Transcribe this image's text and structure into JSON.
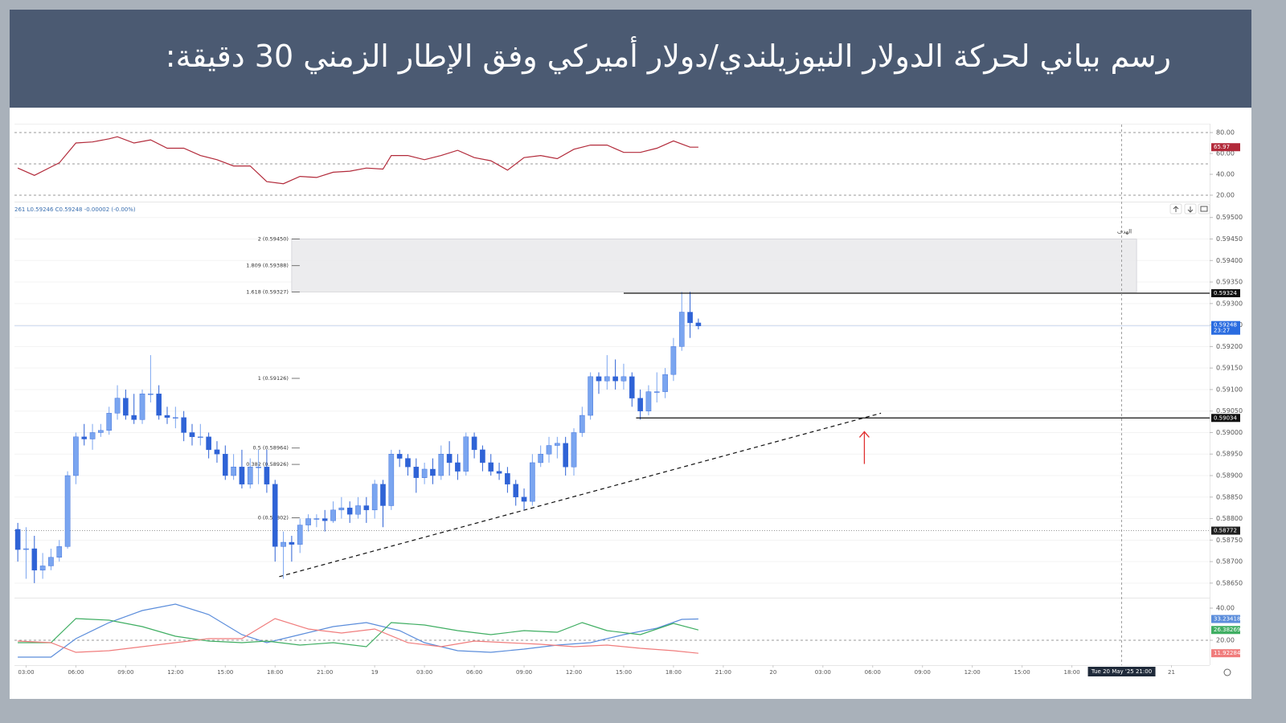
{
  "header": {
    "title": "رسم بياني لحركة الدولار النيوزيلندي/دولار أميركي وفق الإطار الزمني 30 دقيقة:"
  },
  "chart_data": [
    {
      "type": "line",
      "ylim": [
        14.6,
        87.7
      ],
      "yticks": [
        {
          "value": 20,
          "label": "20.00"
        },
        {
          "value": 40,
          "label": "40.00"
        },
        {
          "value": 60,
          "label": "60.00"
        },
        {
          "value": 80,
          "label": "80.00"
        }
      ],
      "levels": [
        80,
        50,
        20
      ],
      "series": [
        {
          "color": "#b22a3a",
          "x": [
            0,
            2,
            4,
            5,
            7,
            9,
            11,
            12,
            14,
            16,
            18,
            20,
            22,
            24,
            26,
            28,
            30,
            32,
            34,
            36,
            38,
            40,
            42,
            44,
            45,
            47,
            49,
            51,
            53,
            55,
            57,
            59,
            61,
            63,
            65,
            67,
            69,
            71,
            73,
            75,
            77,
            79,
            81,
            82
          ],
          "values": [
            46,
            39,
            47,
            51,
            70,
            71,
            74,
            76,
            70,
            73,
            65,
            65,
            58,
            54,
            48,
            48,
            33,
            31,
            38,
            37,
            42,
            43,
            46,
            45,
            58,
            58,
            54,
            58,
            63,
            56,
            53,
            44,
            56,
            58,
            55,
            64,
            68,
            68,
            61,
            61,
            65,
            72,
            66,
            65.97
          ]
        }
      ]
    },
    {
      "type": "candlestick",
      "legend_text": "261 L0.59246 C0.59248 -0.00002 (-0.00%)",
      "color_up": "#7aa5f0",
      "color_down": "#2f63d6",
      "xlim": [
        -0.4,
        143.6
      ],
      "xticks": [
        {
          "value": 1,
          "label": "03:00"
        },
        {
          "value": 7,
          "label": "06:00"
        },
        {
          "value": 13,
          "label": "09:00"
        },
        {
          "value": 19,
          "label": "12:00"
        },
        {
          "value": 25,
          "label": "15:00"
        },
        {
          "value": 31,
          "label": "18:00"
        },
        {
          "value": 37,
          "label": "21:00"
        },
        {
          "value": 43,
          "label": "19"
        },
        {
          "value": 49,
          "label": "03:00"
        },
        {
          "value": 55,
          "label": "06:00"
        },
        {
          "value": 61,
          "label": "09:00"
        },
        {
          "value": 67,
          "label": "12:00"
        },
        {
          "value": 73,
          "label": "15:00"
        },
        {
          "value": 79,
          "label": "18:00"
        },
        {
          "value": 85,
          "label": "21:00"
        },
        {
          "value": 91,
          "label": "20"
        },
        {
          "value": 97,
          "label": "03:00"
        },
        {
          "value": 103,
          "label": "06:00"
        },
        {
          "value": 109,
          "label": "09:00"
        },
        {
          "value": 115,
          "label": "12:00"
        },
        {
          "value": 121,
          "label": "15:00"
        },
        {
          "value": 127,
          "label": "18:00"
        },
        {
          "value": 139,
          "label": "21"
        }
      ],
      "ylim": [
        0.58618,
        0.59535
      ],
      "yticks": [
        {
          "value": 0.5865,
          "label": "0.58650"
        },
        {
          "value": 0.587,
          "label": "0.58700"
        },
        {
          "value": 0.5875,
          "label": "0.58750"
        },
        {
          "value": 0.588,
          "label": "0.58800"
        },
        {
          "value": 0.5885,
          "label": "0.58850"
        },
        {
          "value": 0.589,
          "label": "0.58900"
        },
        {
          "value": 0.5895,
          "label": "0.58950"
        },
        {
          "value": 0.59,
          "label": "0.59000"
        },
        {
          "value": 0.5905,
          "label": "0.59050"
        },
        {
          "value": 0.591,
          "label": "0.59100"
        },
        {
          "value": 0.5915,
          "label": "0.59150"
        },
        {
          "value": 0.592,
          "label": "0.59200"
        },
        {
          "value": 0.5925,
          "label": "0.59250"
        },
        {
          "value": 0.593,
          "label": "0.59300"
        },
        {
          "value": 0.5935,
          "label": "0.59350"
        },
        {
          "value": 0.594,
          "label": "0.59400"
        },
        {
          "value": 0.5945,
          "label": "0.59450"
        },
        {
          "value": 0.595,
          "label": "0.59500"
        }
      ],
      "candles": [
        [
          0.58775,
          0.5879,
          0.587,
          0.58728
        ],
        [
          0.58728,
          0.5878,
          0.5866,
          0.5873
        ],
        [
          0.5873,
          0.5876,
          0.5865,
          0.5868
        ],
        [
          0.5868,
          0.5872,
          0.5866,
          0.5869
        ],
        [
          0.5869,
          0.5873,
          0.5868,
          0.5871
        ],
        [
          0.5871,
          0.5875,
          0.587,
          0.58735
        ],
        [
          0.58735,
          0.5891,
          0.5873,
          0.589
        ],
        [
          0.589,
          0.59,
          0.5888,
          0.5899
        ],
        [
          0.5899,
          0.5902,
          0.5897,
          0.58985
        ],
        [
          0.58985,
          0.5902,
          0.5896,
          0.59
        ],
        [
          0.59,
          0.5902,
          0.5899,
          0.59005
        ],
        [
          0.59005,
          0.5906,
          0.58995,
          0.59045
        ],
        [
          0.59045,
          0.5911,
          0.5903,
          0.5908
        ],
        [
          0.5908,
          0.591,
          0.5903,
          0.5904
        ],
        [
          0.5904,
          0.5909,
          0.5902,
          0.5903
        ],
        [
          0.5903,
          0.591,
          0.5902,
          0.5909
        ],
        [
          0.5909,
          0.5918,
          0.5907,
          0.5909
        ],
        [
          0.5909,
          0.5911,
          0.5903,
          0.5904
        ],
        [
          0.5904,
          0.5906,
          0.5902,
          0.59035
        ],
        [
          0.59035,
          0.5906,
          0.5901,
          0.59035
        ],
        [
          0.59035,
          0.5905,
          0.5898,
          0.59
        ],
        [
          0.59,
          0.5902,
          0.5897,
          0.5899
        ],
        [
          0.5899,
          0.5902,
          0.5897,
          0.5899
        ],
        [
          0.5899,
          0.59,
          0.5894,
          0.5896
        ],
        [
          0.5896,
          0.5898,
          0.5893,
          0.5895
        ],
        [
          0.5895,
          0.5897,
          0.5889,
          0.589
        ],
        [
          0.589,
          0.5895,
          0.5889,
          0.5892
        ],
        [
          0.5892,
          0.5896,
          0.5887,
          0.5888
        ],
        [
          0.5888,
          0.5894,
          0.5887,
          0.5892
        ],
        [
          0.5892,
          0.5896,
          0.5888,
          0.5892
        ],
        [
          0.5892,
          0.5896,
          0.5886,
          0.5888
        ],
        [
          0.5888,
          0.5889,
          0.587,
          0.58735
        ],
        [
          0.58735,
          0.5877,
          0.5866,
          0.58745
        ],
        [
          0.58745,
          0.5876,
          0.587,
          0.5874
        ],
        [
          0.5874,
          0.588,
          0.5872,
          0.58785
        ],
        [
          0.58785,
          0.5881,
          0.5877,
          0.588
        ],
        [
          0.588,
          0.5881,
          0.5878,
          0.588
        ],
        [
          0.588,
          0.5882,
          0.5877,
          0.58795
        ],
        [
          0.58795,
          0.5884,
          0.5879,
          0.5882
        ],
        [
          0.5882,
          0.5885,
          0.588,
          0.58825
        ],
        [
          0.58825,
          0.5884,
          0.5879,
          0.5881
        ],
        [
          0.5881,
          0.5885,
          0.588,
          0.5883
        ],
        [
          0.5883,
          0.5885,
          0.5879,
          0.5882
        ],
        [
          0.5882,
          0.5889,
          0.588,
          0.5888
        ],
        [
          0.5888,
          0.5889,
          0.5878,
          0.5883
        ],
        [
          0.5883,
          0.5896,
          0.5882,
          0.5895
        ],
        [
          0.5895,
          0.5896,
          0.5892,
          0.5894
        ],
        [
          0.5894,
          0.5895,
          0.589,
          0.5892
        ],
        [
          0.5892,
          0.5894,
          0.5886,
          0.58895
        ],
        [
          0.58895,
          0.5893,
          0.5888,
          0.58915
        ],
        [
          0.58915,
          0.5894,
          0.5888,
          0.589
        ],
        [
          0.589,
          0.5897,
          0.5889,
          0.5895
        ],
        [
          0.5895,
          0.5898,
          0.589,
          0.5893
        ],
        [
          0.5893,
          0.5895,
          0.5889,
          0.5891
        ],
        [
          0.5891,
          0.59,
          0.589,
          0.5899
        ],
        [
          0.5899,
          0.59,
          0.5894,
          0.5896
        ],
        [
          0.5896,
          0.5897,
          0.5891,
          0.5893
        ],
        [
          0.5893,
          0.5895,
          0.589,
          0.5891
        ],
        [
          0.5891,
          0.5893,
          0.5889,
          0.58905
        ],
        [
          0.58905,
          0.5892,
          0.5886,
          0.5888
        ],
        [
          0.5888,
          0.5889,
          0.5883,
          0.5885
        ],
        [
          0.5885,
          0.5887,
          0.5882,
          0.5884
        ],
        [
          0.5884,
          0.5895,
          0.5883,
          0.5893
        ],
        [
          0.5893,
          0.5897,
          0.5892,
          0.5895
        ],
        [
          0.5895,
          0.5899,
          0.5893,
          0.5897
        ],
        [
          0.5897,
          0.5899,
          0.5894,
          0.58975
        ],
        [
          0.58975,
          0.5899,
          0.589,
          0.5892
        ],
        [
          0.5892,
          0.5901,
          0.589,
          0.59
        ],
        [
          0.59,
          0.5906,
          0.5899,
          0.5904
        ],
        [
          0.5904,
          0.5914,
          0.5903,
          0.5913
        ],
        [
          0.5913,
          0.5914,
          0.5909,
          0.5912
        ],
        [
          0.5912,
          0.5918,
          0.591,
          0.5913
        ],
        [
          0.5913,
          0.5917,
          0.591,
          0.5912
        ],
        [
          0.5912,
          0.5916,
          0.591,
          0.5913
        ],
        [
          0.5913,
          0.5914,
          0.5906,
          0.5908
        ],
        [
          0.5908,
          0.591,
          0.5903,
          0.5905
        ],
        [
          0.5905,
          0.5911,
          0.5904,
          0.59095
        ],
        [
          0.59095,
          0.5914,
          0.5907,
          0.59095
        ],
        [
          0.59095,
          0.5915,
          0.5908,
          0.59135
        ],
        [
          0.59135,
          0.5922,
          0.5912,
          0.592
        ],
        [
          0.592,
          0.59327,
          0.5919,
          0.5928
        ],
        [
          0.5928,
          0.59327,
          0.5922,
          0.59255
        ],
        [
          0.59255,
          0.59265,
          0.5924,
          0.59248
        ]
      ],
      "countdown": "23:27",
      "marker_price": 0.58772,
      "hlines": [
        {
          "value": 0.59324,
          "start": 73
        },
        {
          "value": 0.59034,
          "start": 74.5
        }
      ],
      "fib_start": 33,
      "fib_levels": [
        {
          "value": 0.5945,
          "label": "2 (0.59450)"
        },
        {
          "value": 0.59388,
          "label": "1.809 (0.59388)"
        },
        {
          "value": 0.59327,
          "label": "1.618 (0.59327)"
        },
        {
          "value": 0.59126,
          "label": "1 (0.59126)"
        },
        {
          "value": 0.58964,
          "label": "0.5 (0.58964)"
        },
        {
          "value": 0.58926,
          "label": "0.382 (0.58926)"
        },
        {
          "value": 0.58802,
          "label": "0 (0.58802)"
        }
      ],
      "zone": {
        "from": 33,
        "to": 134.8,
        "low": 0.59327,
        "high": 0.5945,
        "label": "الهدف"
      },
      "trendline": {
        "x": [
          31.5,
          104
        ],
        "values": [
          0.58665,
          0.59045
        ]
      },
      "arrow": {
        "x": 102,
        "from": 0.58927,
        "to": 0.59002,
        "color": "#e03030"
      },
      "crosshair": {
        "x": 133,
        "label": "Tue 20 May '25  21:00"
      }
    },
    {
      "type": "line",
      "ylim": [
        4.5,
        46
      ],
      "yticks": [
        {
          "value": 20,
          "label": "20.00"
        },
        {
          "value": 40,
          "label": "40.00"
        }
      ],
      "levels": [
        20
      ],
      "series": [
        {
          "color": "#5b8ddb",
          "x": [
            0,
            4,
            7,
            11,
            15,
            19,
            23,
            27,
            30,
            34,
            38,
            42,
            46,
            49,
            53,
            57,
            61,
            65,
            69,
            73,
            77,
            80,
            82
          ],
          "values": [
            9.5,
            9.5,
            21,
            31,
            38.5,
            42.5,
            36,
            23.5,
            18.5,
            23.5,
            28.5,
            31,
            26,
            18.5,
            13.5,
            12.5,
            14.5,
            17,
            18.5,
            23.5,
            27.5,
            33,
            33.23418
          ]
        },
        {
          "color": "#3fae62",
          "x": [
            0,
            4,
            7,
            11,
            15,
            19,
            23,
            27,
            30,
            34,
            38,
            42,
            45,
            49,
            53,
            57,
            61,
            65,
            68,
            71,
            75,
            79,
            82
          ],
          "values": [
            18.5,
            18.5,
            33.5,
            32.5,
            28.5,
            22.5,
            19.5,
            18.5,
            19.5,
            17,
            18.5,
            16,
            31,
            29.5,
            26,
            23.5,
            26,
            25,
            31,
            26,
            23.5,
            30.5,
            26.38269
          ]
        },
        {
          "color": "#f07c7c",
          "x": [
            0,
            4,
            7,
            11,
            15,
            19,
            23,
            27,
            31,
            35,
            39,
            43,
            47,
            51,
            55,
            59,
            63,
            67,
            71,
            75,
            79,
            82
          ],
          "values": [
            19.5,
            18.5,
            12.5,
            13.5,
            16,
            18.5,
            21,
            21,
            33.5,
            27,
            24.5,
            27,
            18.5,
            16,
            19.5,
            18.5,
            17.5,
            16,
            17,
            15,
            13.5,
            11.92284
          ]
        }
      ]
    }
  ]
}
